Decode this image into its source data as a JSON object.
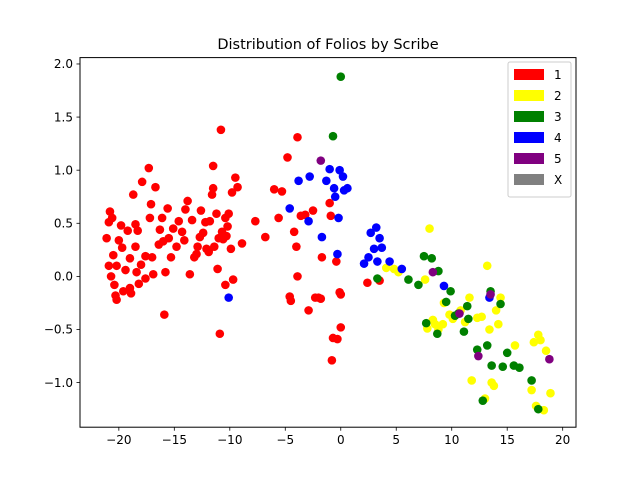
{
  "chart_data": {
    "type": "scatter",
    "title": "Distribution of Folios by Scribe",
    "xlabel": "",
    "ylabel": "",
    "xlim": [
      -23.5,
      21.2
    ],
    "ylim": [
      -1.42,
      2.06
    ],
    "xticks": [
      -20,
      -15,
      -10,
      -5,
      0,
      5,
      10,
      15,
      20
    ],
    "xtick_labels": [
      "−20",
      "−15",
      "−10",
      "−5",
      "0",
      "5",
      "10",
      "15",
      "20"
    ],
    "yticks": [
      -1.0,
      -0.5,
      0.0,
      0.5,
      1.0,
      1.5,
      2.0
    ],
    "ytick_labels": [
      "−1.0",
      "−0.5",
      "0.0",
      "0.5",
      "1.0",
      "1.5",
      "2.0"
    ],
    "legend_position": "top-right",
    "series": [
      {
        "name": "1",
        "color": "#ff0000",
        "points": [
          [
            -21.1,
            0.36
          ],
          [
            -20.9,
            0.51
          ],
          [
            -20.8,
            0.61
          ],
          [
            -20.6,
            0.55
          ],
          [
            -20.7,
            0.0
          ],
          [
            -20.9,
            0.1
          ],
          [
            -20.5,
            0.2
          ],
          [
            -20.4,
            -0.08
          ],
          [
            -20.3,
            -0.18
          ],
          [
            -20.2,
            -0.22
          ],
          [
            -20.2,
            0.1
          ],
          [
            -20.0,
            0.34
          ],
          [
            -19.8,
            0.48
          ],
          [
            -19.7,
            0.27
          ],
          [
            -19.4,
            0.06
          ],
          [
            -19.6,
            -0.14
          ],
          [
            -19.2,
            0.43
          ],
          [
            -19.0,
            0.17
          ],
          [
            -19.0,
            -0.11
          ],
          [
            -18.9,
            -0.16
          ],
          [
            -18.7,
            0.77
          ],
          [
            -18.5,
            0.28
          ],
          [
            -18.5,
            0.49
          ],
          [
            -18.3,
            0.43
          ],
          [
            -18.4,
            0.04
          ],
          [
            -18.2,
            -0.07
          ],
          [
            -18.0,
            0.11
          ],
          [
            -17.9,
            0.89
          ],
          [
            -17.6,
            0.19
          ],
          [
            -17.6,
            -0.02
          ],
          [
            -17.3,
            1.02
          ],
          [
            -17.2,
            0.55
          ],
          [
            -17.1,
            0.68
          ],
          [
            -17.0,
            0.18
          ],
          [
            -16.9,
            0.02
          ],
          [
            -16.7,
            0.84
          ],
          [
            -16.4,
            0.3
          ],
          [
            -16.3,
            0.44
          ],
          [
            -16.1,
            0.55
          ],
          [
            -16.0,
            0.33
          ],
          [
            -15.8,
            0.04
          ],
          [
            -15.6,
            0.64
          ],
          [
            -15.5,
            0.36
          ],
          [
            -15.3,
            0.18
          ],
          [
            -15.1,
            0.45
          ],
          [
            -15.9,
            -0.36
          ],
          [
            -14.8,
            0.28
          ],
          [
            -14.6,
            0.52
          ],
          [
            -14.3,
            0.42
          ],
          [
            -14.1,
            0.34
          ],
          [
            -14.0,
            0.63
          ],
          [
            -13.8,
            0.71
          ],
          [
            -13.6,
            0.02
          ],
          [
            -13.4,
            0.53
          ],
          [
            -13.2,
            0.18
          ],
          [
            -13.0,
            0.21
          ],
          [
            -12.9,
            0.28
          ],
          [
            -12.7,
            0.37
          ],
          [
            -12.6,
            0.62
          ],
          [
            -12.4,
            0.41
          ],
          [
            -12.2,
            0.51
          ],
          [
            -12.1,
            0.26
          ],
          [
            -11.9,
            0.23
          ],
          [
            -11.8,
            0.52
          ],
          [
            -11.6,
            0.77
          ],
          [
            -11.5,
            0.83
          ],
          [
            -11.5,
            1.04
          ],
          [
            -11.4,
            0.28
          ],
          [
            -11.2,
            0.59
          ],
          [
            -11.1,
            0.07
          ],
          [
            -11.0,
            0.36
          ],
          [
            -10.9,
            -0.54
          ],
          [
            -10.8,
            1.38
          ],
          [
            -10.7,
            0.42
          ],
          [
            -10.6,
            0.35
          ],
          [
            -10.4,
            0.55
          ],
          [
            -10.3,
            0.38
          ],
          [
            -10.2,
            0.47
          ],
          [
            -10.1,
            0.59
          ],
          [
            -10.4,
            -0.08
          ],
          [
            -9.9,
            0.26
          ],
          [
            -9.8,
            0.79
          ],
          [
            -9.7,
            -0.03
          ],
          [
            -9.5,
            0.93
          ],
          [
            -9.3,
            0.84
          ],
          [
            -8.9,
            0.31
          ],
          [
            -7.7,
            0.52
          ],
          [
            -6.8,
            0.37
          ],
          [
            -6.0,
            0.82
          ],
          [
            -5.6,
            0.55
          ],
          [
            -5.3,
            0.8
          ],
          [
            -4.8,
            1.12
          ],
          [
            -4.6,
            -0.19
          ],
          [
            -4.5,
            -0.23
          ],
          [
            -4.2,
            0.42
          ],
          [
            -4.0,
            0.28
          ],
          [
            -3.9,
            0.0
          ],
          [
            -3.9,
            1.31
          ],
          [
            -3.6,
            0.57
          ],
          [
            -3.2,
            0.58
          ],
          [
            -2.9,
            -0.32
          ],
          [
            -2.5,
            0.62
          ],
          [
            -2.3,
            -0.2
          ],
          [
            -2.0,
            -0.2
          ],
          [
            -1.8,
            -0.21
          ],
          [
            -1.7,
            0.18
          ],
          [
            -1.0,
            0.69
          ],
          [
            -0.9,
            0.57
          ],
          [
            -0.8,
            -0.79
          ],
          [
            -0.7,
            -0.58
          ],
          [
            -0.4,
            0.14
          ],
          [
            -0.3,
            -0.59
          ],
          [
            -0.1,
            -0.15
          ],
          [
            0.0,
            -0.48
          ],
          [
            0.0,
            -0.17
          ],
          [
            2.4,
            -0.06
          ],
          [
            3.5,
            -0.04
          ]
        ]
      },
      {
        "name": "2",
        "color": "#ffff00",
        "points": [
          [
            4.1,
            0.08
          ],
          [
            4.8,
            0.07
          ],
          [
            5.2,
            0.04
          ],
          [
            7.6,
            -0.03
          ],
          [
            7.8,
            -0.49
          ],
          [
            8.0,
            0.45
          ],
          [
            8.3,
            -0.41
          ],
          [
            8.5,
            -0.45
          ],
          [
            8.8,
            -0.5
          ],
          [
            9.2,
            -0.45
          ],
          [
            9.3,
            -0.25
          ],
          [
            9.8,
            -0.36
          ],
          [
            10.1,
            -0.4
          ],
          [
            10.8,
            -0.32
          ],
          [
            11.2,
            -0.43
          ],
          [
            11.6,
            -0.2
          ],
          [
            11.8,
            -0.98
          ],
          [
            12.3,
            -0.39
          ],
          [
            12.7,
            -0.38
          ],
          [
            13.0,
            -1.15
          ],
          [
            13.2,
            0.1
          ],
          [
            13.4,
            -0.5
          ],
          [
            13.6,
            -1.0
          ],
          [
            13.8,
            -1.03
          ],
          [
            14.0,
            -0.32
          ],
          [
            14.2,
            -0.45
          ],
          [
            14.4,
            -0.2
          ],
          [
            15.7,
            -0.65
          ],
          [
            17.2,
            -1.07
          ],
          [
            17.4,
            -0.62
          ],
          [
            17.6,
            -1.22
          ],
          [
            17.8,
            -0.55
          ],
          [
            18.0,
            -0.6
          ],
          [
            18.3,
            -1.26
          ],
          [
            18.5,
            -0.7
          ],
          [
            18.9,
            -1.1
          ]
        ]
      },
      {
        "name": "3",
        "color": "#008000",
        "points": [
          [
            -0.7,
            1.32
          ],
          [
            0.0,
            1.88
          ],
          [
            3.3,
            -0.02
          ],
          [
            6.1,
            -0.03
          ],
          [
            7.0,
            -0.08
          ],
          [
            7.5,
            0.19
          ],
          [
            7.7,
            -0.44
          ],
          [
            8.2,
            0.17
          ],
          [
            8.7,
            -0.54
          ],
          [
            8.8,
            0.05
          ],
          [
            9.5,
            -0.24
          ],
          [
            9.9,
            -0.14
          ],
          [
            10.3,
            -0.37
          ],
          [
            10.6,
            -0.35
          ],
          [
            11.1,
            -0.52
          ],
          [
            11.4,
            -0.28
          ],
          [
            11.5,
            -0.4
          ],
          [
            12.3,
            -0.69
          ],
          [
            12.8,
            -1.17
          ],
          [
            13.2,
            -0.65
          ],
          [
            13.5,
            -0.14
          ],
          [
            13.6,
            -0.84
          ],
          [
            14.4,
            -0.26
          ],
          [
            14.6,
            -0.85
          ],
          [
            15.0,
            -0.72
          ],
          [
            15.6,
            -0.84
          ],
          [
            16.1,
            -0.86
          ],
          [
            17.2,
            -0.98
          ],
          [
            17.8,
            -1.25
          ]
        ]
      },
      {
        "name": "4",
        "color": "#0000ff",
        "points": [
          [
            -10.1,
            -0.2
          ],
          [
            -4.6,
            0.64
          ],
          [
            -3.8,
            0.9
          ],
          [
            -2.9,
            0.52
          ],
          [
            -2.8,
            0.94
          ],
          [
            -1.7,
            0.37
          ],
          [
            -1.3,
            0.9
          ],
          [
            -1.0,
            1.01
          ],
          [
            -0.6,
            0.83
          ],
          [
            -0.5,
            0.75
          ],
          [
            -0.2,
            0.55
          ],
          [
            -0.1,
            1.0
          ],
          [
            0.2,
            0.94
          ],
          [
            0.3,
            0.81
          ],
          [
            0.6,
            0.83
          ],
          [
            -0.3,
            0.21
          ],
          [
            2.1,
            0.12
          ],
          [
            2.5,
            0.18
          ],
          [
            2.7,
            0.41
          ],
          [
            3.0,
            0.26
          ],
          [
            3.2,
            0.46
          ],
          [
            3.3,
            0.14
          ],
          [
            3.5,
            0.36
          ],
          [
            3.7,
            0.27
          ],
          [
            4.4,
            0.14
          ],
          [
            5.5,
            0.07
          ],
          [
            9.3,
            -0.09
          ],
          [
            13.4,
            -0.2
          ]
        ]
      },
      {
        "name": "5",
        "color": "#800080",
        "points": [
          [
            -1.8,
            1.09
          ],
          [
            8.3,
            0.04
          ],
          [
            10.7,
            -0.35
          ],
          [
            12.4,
            -0.75
          ],
          [
            13.5,
            -0.17
          ],
          [
            18.8,
            -0.78
          ]
        ]
      },
      {
        "name": "X",
        "color": "#808080",
        "points": []
      }
    ]
  }
}
